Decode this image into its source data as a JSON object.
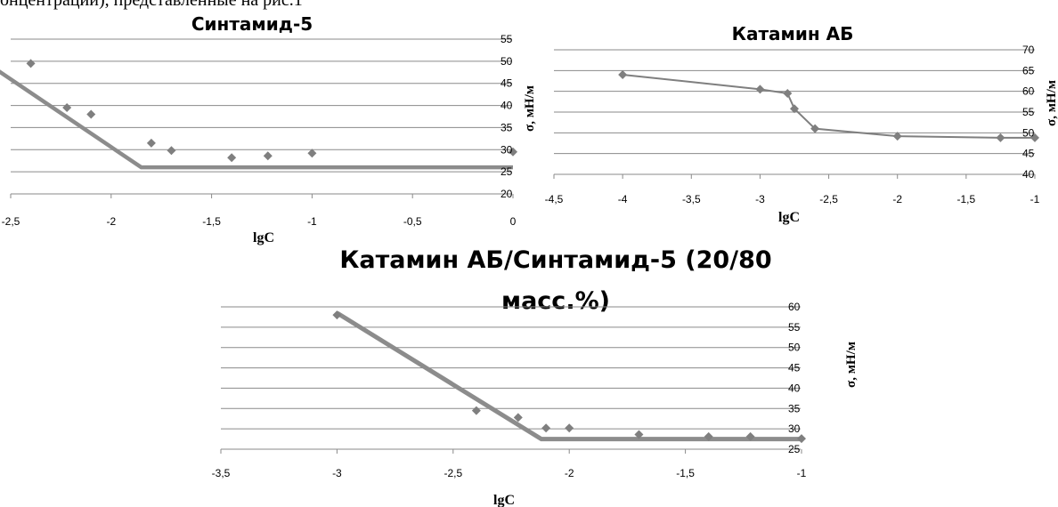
{
  "top_text": "онцентраций), представленные на рис.1",
  "chart_data": [
    {
      "type": "scatter",
      "title": "Синтамид-5",
      "xlabel": "lgC",
      "ylabel": "σ, мН/м",
      "xlim": [
        -2.5,
        0
      ],
      "ylim": [
        20,
        55
      ],
      "xticks": [
        "-2,5",
        "-2",
        "-1,5",
        "-1",
        "-0,5",
        "0"
      ],
      "yticks": [
        "20",
        "25",
        "30",
        "35",
        "40",
        "45",
        "50",
        "55"
      ],
      "series": [
        {
          "marker": "diamond",
          "color": "#7f7f7f",
          "x": [
            -2.4,
            -2.22,
            -2.1,
            -1.8,
            -1.7,
            -1.4,
            -1.22,
            -1.0,
            0.0
          ],
          "y": [
            49.5,
            39.5,
            38,
            31.5,
            29.8,
            28.2,
            28.6,
            29.2,
            29.5
          ]
        }
      ],
      "trend": {
        "color": "#8c8c8c",
        "x": [
          -2.6,
          -1.85,
          0.0
        ],
        "y": [
          49,
          26,
          26
        ]
      }
    },
    {
      "type": "line",
      "title": "Катамин АБ",
      "xlabel": "lgC",
      "ylabel": "σ, мН/м",
      "xlim": [
        -4.5,
        -1
      ],
      "ylim": [
        40,
        70
      ],
      "xticks": [
        "-4,5",
        "-4",
        "-3,5",
        "-3",
        "-2,5",
        "-2",
        "-1,5",
        "-1"
      ],
      "yticks": [
        "40",
        "45",
        "50",
        "55",
        "60",
        "65",
        "70"
      ],
      "series": [
        {
          "marker": "diamond",
          "color": "#7f7f7f",
          "x": [
            -4.0,
            -3.0,
            -2.8,
            -2.75,
            -2.6,
            -2.0,
            -1.25,
            -1.0
          ],
          "y": [
            64,
            60.5,
            59.5,
            55.8,
            51,
            49.2,
            48.8,
            48.8
          ]
        }
      ]
    },
    {
      "type": "scatter",
      "title": "Катамин АБ/Синтамид-5    (20/80",
      "title_line2": "масс.%)",
      "xlabel": "lgC",
      "ylabel": "σ, мН/м",
      "xlim": [
        -3.5,
        -1
      ],
      "ylim": [
        25,
        60
      ],
      "xticks": [
        "-3,5",
        "-3",
        "-2,5",
        "-2",
        "-1,5",
        "-1"
      ],
      "yticks": [
        "25",
        "30",
        "35",
        "40",
        "45",
        "50",
        "55",
        "60"
      ],
      "series": [
        {
          "marker": "diamond",
          "color": "#7f7f7f",
          "x": [
            -3.0,
            -2.4,
            -2.22,
            -2.1,
            -2.0,
            -1.7,
            -1.4,
            -1.22,
            -1.0
          ],
          "y": [
            58,
            34.5,
            32.8,
            30.2,
            30.2,
            28.6,
            28.1,
            28.1,
            27.6
          ]
        }
      ],
      "trend": {
        "color": "#8c8c8c",
        "x": [
          -3.0,
          -2.12,
          -1.0
        ],
        "y": [
          58.5,
          27.5,
          27.5
        ]
      }
    }
  ]
}
